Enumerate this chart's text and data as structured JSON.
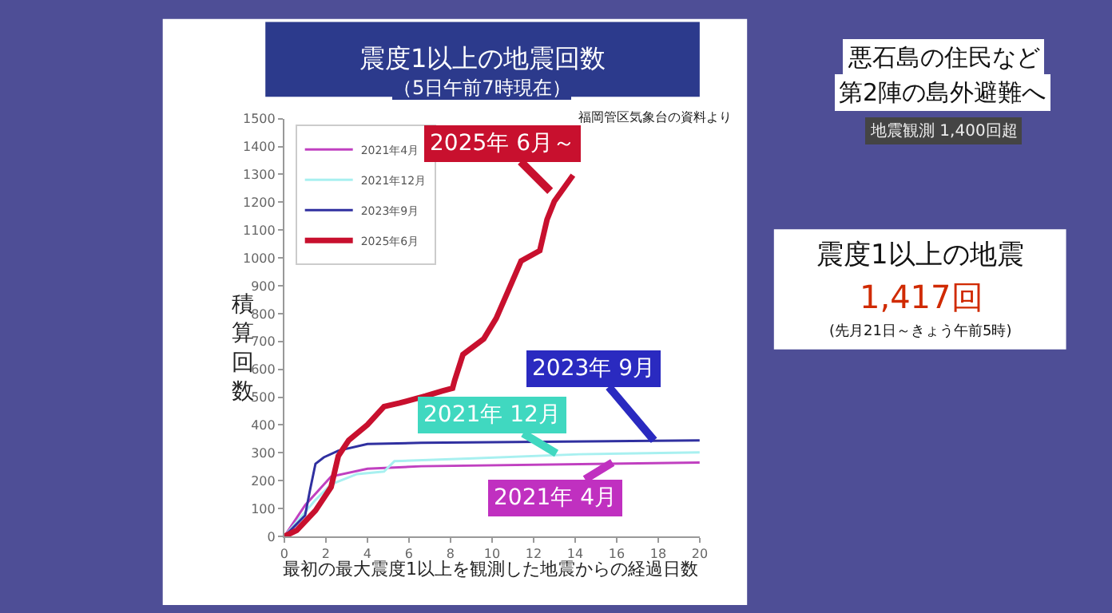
{
  "chart_data": {
    "type": "line",
    "title": "震度1以上の地震回数",
    "subtitle": "（5日午前7時現在）",
    "xlabel": "最初の最大震度1以上を観測した地震からの経過日数",
    "ylabel": "積算回数",
    "xlim": [
      0,
      20
    ],
    "xticks": [
      0,
      2,
      4,
      6,
      8,
      10,
      12,
      14,
      16,
      18,
      20
    ],
    "ylim": [
      0,
      1500
    ],
    "yticks": [
      0,
      100,
      200,
      300,
      400,
      500,
      600,
      700,
      800,
      900,
      1000,
      1100,
      1200,
      1300,
      1400,
      1500
    ],
    "legend": "top left",
    "marker": "none",
    "line_style": "solid",
    "series": [
      {
        "name": "2021年4月",
        "color": "#c040c0",
        "x": [
          0,
          1.0,
          2.25,
          4.0,
          6.6,
          20
        ],
        "values": [
          0,
          112,
          215,
          243,
          252,
          265
        ]
      },
      {
        "name": "2021年12月",
        "color": "#a8f0f0",
        "x": [
          0,
          1.5,
          2.25,
          3.5,
          4.8,
          5.3,
          9.1,
          14.2,
          20
        ],
        "values": [
          0,
          131,
          187,
          224,
          233,
          270,
          280,
          295,
          302
        ]
      },
      {
        "name": "2023年9月",
        "color": "#3030a0",
        "x": [
          0,
          0.5,
          1.0,
          1.24,
          1.5,
          1.9,
          2.6,
          4.0,
          6.6,
          20
        ],
        "values": [
          0,
          37,
          75,
          168,
          261,
          284,
          308,
          332,
          336,
          345
        ]
      },
      {
        "name": "2025年6月",
        "color": "#c8102e",
        "x": [
          0,
          0.6,
          1.5,
          2.25,
          2.6,
          3.1,
          4.0,
          4.8,
          5.55,
          6.8,
          7.6,
          8.1,
          8.2,
          8.6,
          9.6,
          10.2,
          10.75,
          11.4,
          12.3,
          12.65,
          13.0,
          13.9
        ],
        "values": [
          0,
          22,
          93,
          177,
          289,
          345,
          401,
          466,
          479,
          504,
          522,
          532,
          560,
          653,
          709,
          783,
          877,
          989,
          1026,
          1138,
          1203,
          1297
        ]
      }
    ],
    "annotations": [
      {
        "text": "2025年 6月～",
        "x": 12.8,
        "y": 1240
      },
      {
        "text": "2023年 9月",
        "x": 17.8,
        "y": 345
      },
      {
        "text": "2021年 12月",
        "x": 13.1,
        "y": 298
      },
      {
        "text": "2021年 4月",
        "x": 15.8,
        "y": 265
      },
      "福岡管区気象台の資料より",
      "悪石島の住民など",
      "第2陣の島外避難へ",
      "地震観測 1,400回超",
      "震度1以上の地震",
      "1,417回",
      "(先月21日～きょう午前5時)"
    ]
  }
}
